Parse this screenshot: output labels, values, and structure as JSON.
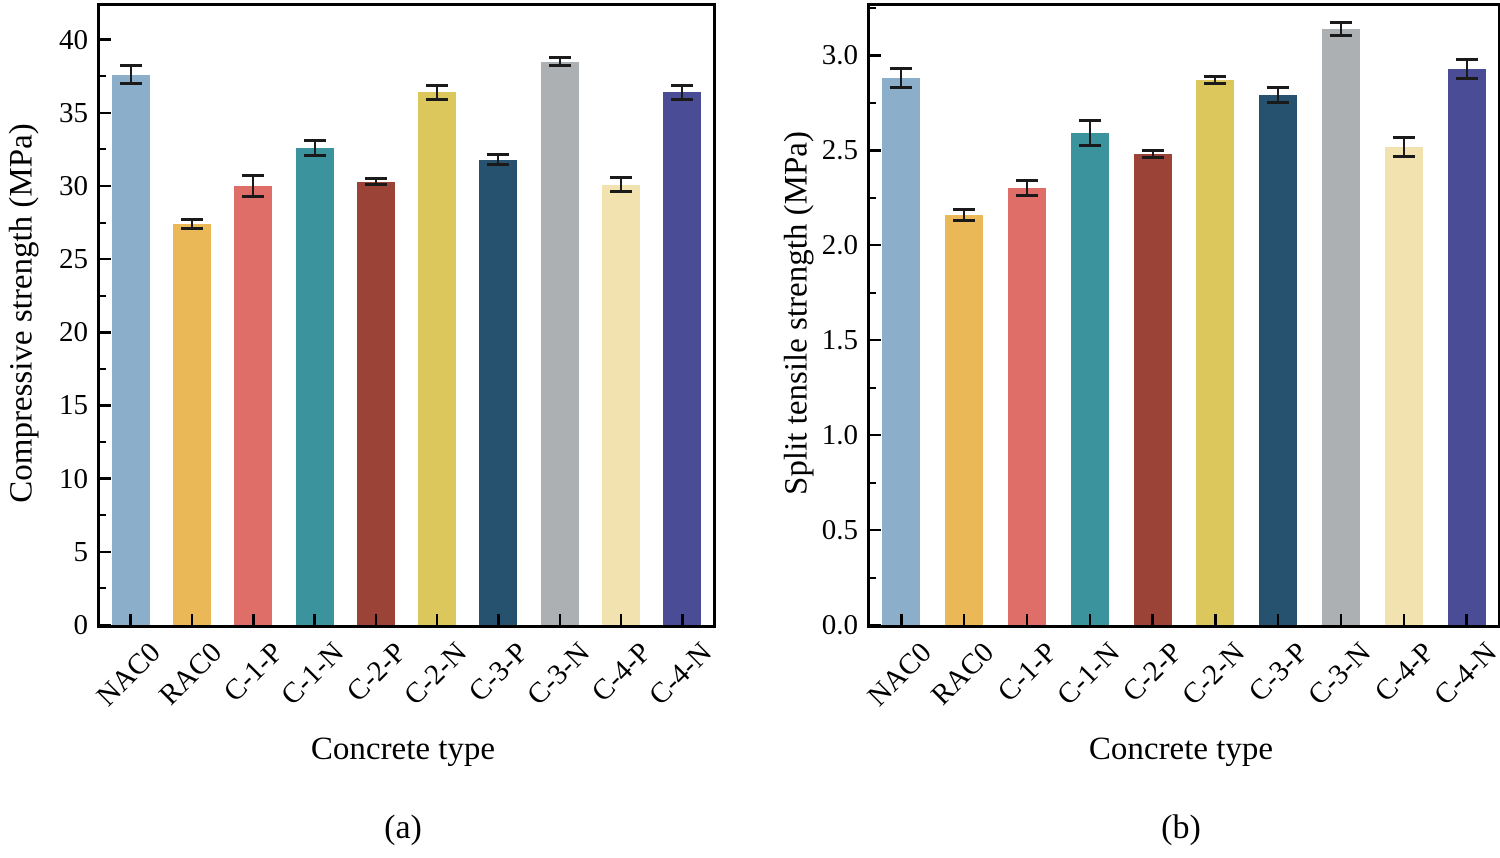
{
  "figure": {
    "background": "#ffffff",
    "error_bar_color": "#1a1a1a",
    "axis_color": "#000000"
  },
  "chart_data": [
    {
      "type": "bar",
      "panel_label": "(a)",
      "title": "",
      "xlabel": "Concrete type",
      "ylabel": "Compressive strength (MPa)",
      "categories": [
        "NAC0",
        "RAC0",
        "C-1-P",
        "C-1-N",
        "C-2-P",
        "C-2-N",
        "C-3-P",
        "C-3-N",
        "C-4-P",
        "C-4-N"
      ],
      "values": [
        37.6,
        27.4,
        30.0,
        32.6,
        30.3,
        36.4,
        31.8,
        38.5,
        30.1,
        36.4
      ],
      "errors": [
        0.6,
        0.3,
        0.7,
        0.5,
        0.2,
        0.5,
        0.35,
        0.25,
        0.45,
        0.5
      ],
      "bar_colors": [
        "#8BAFCB",
        "#EBB858",
        "#E06E68",
        "#3B939D",
        "#9C4337",
        "#DBC75C",
        "#26516F",
        "#ADB0B3",
        "#F1E2B0",
        "#4A4C96"
      ],
      "ylim": [
        0,
        42.3
      ],
      "ytick_step": 5,
      "yminor_step": 2.5,
      "ytick_decimals": 0,
      "grid": false,
      "legend_position": "none"
    },
    {
      "type": "bar",
      "panel_label": "(b)",
      "title": "",
      "xlabel": "Concrete type",
      "ylabel": "Split tensile strength (MPa)",
      "categories": [
        "NAC0",
        "RAC0",
        "C-1-P",
        "C-1-N",
        "C-2-P",
        "C-2-N",
        "C-3-P",
        "C-3-N",
        "C-4-P",
        "C-4-N"
      ],
      "values": [
        2.88,
        2.16,
        2.3,
        2.59,
        2.48,
        2.87,
        2.79,
        3.14,
        2.52,
        2.93
      ],
      "errors": [
        0.05,
        0.03,
        0.04,
        0.065,
        0.02,
        0.02,
        0.04,
        0.035,
        0.05,
        0.05
      ],
      "bar_colors": [
        "#8BAFCB",
        "#EBB858",
        "#E06E68",
        "#3B939D",
        "#9C4337",
        "#DBC75C",
        "#26516F",
        "#ADB0B3",
        "#F1E2B0",
        "#4A4C96"
      ],
      "ylim": [
        0,
        3.26
      ],
      "ytick_step": 0.5,
      "yminor_step": 0.25,
      "ytick_decimals": 1,
      "grid": false,
      "legend_position": "none"
    }
  ]
}
